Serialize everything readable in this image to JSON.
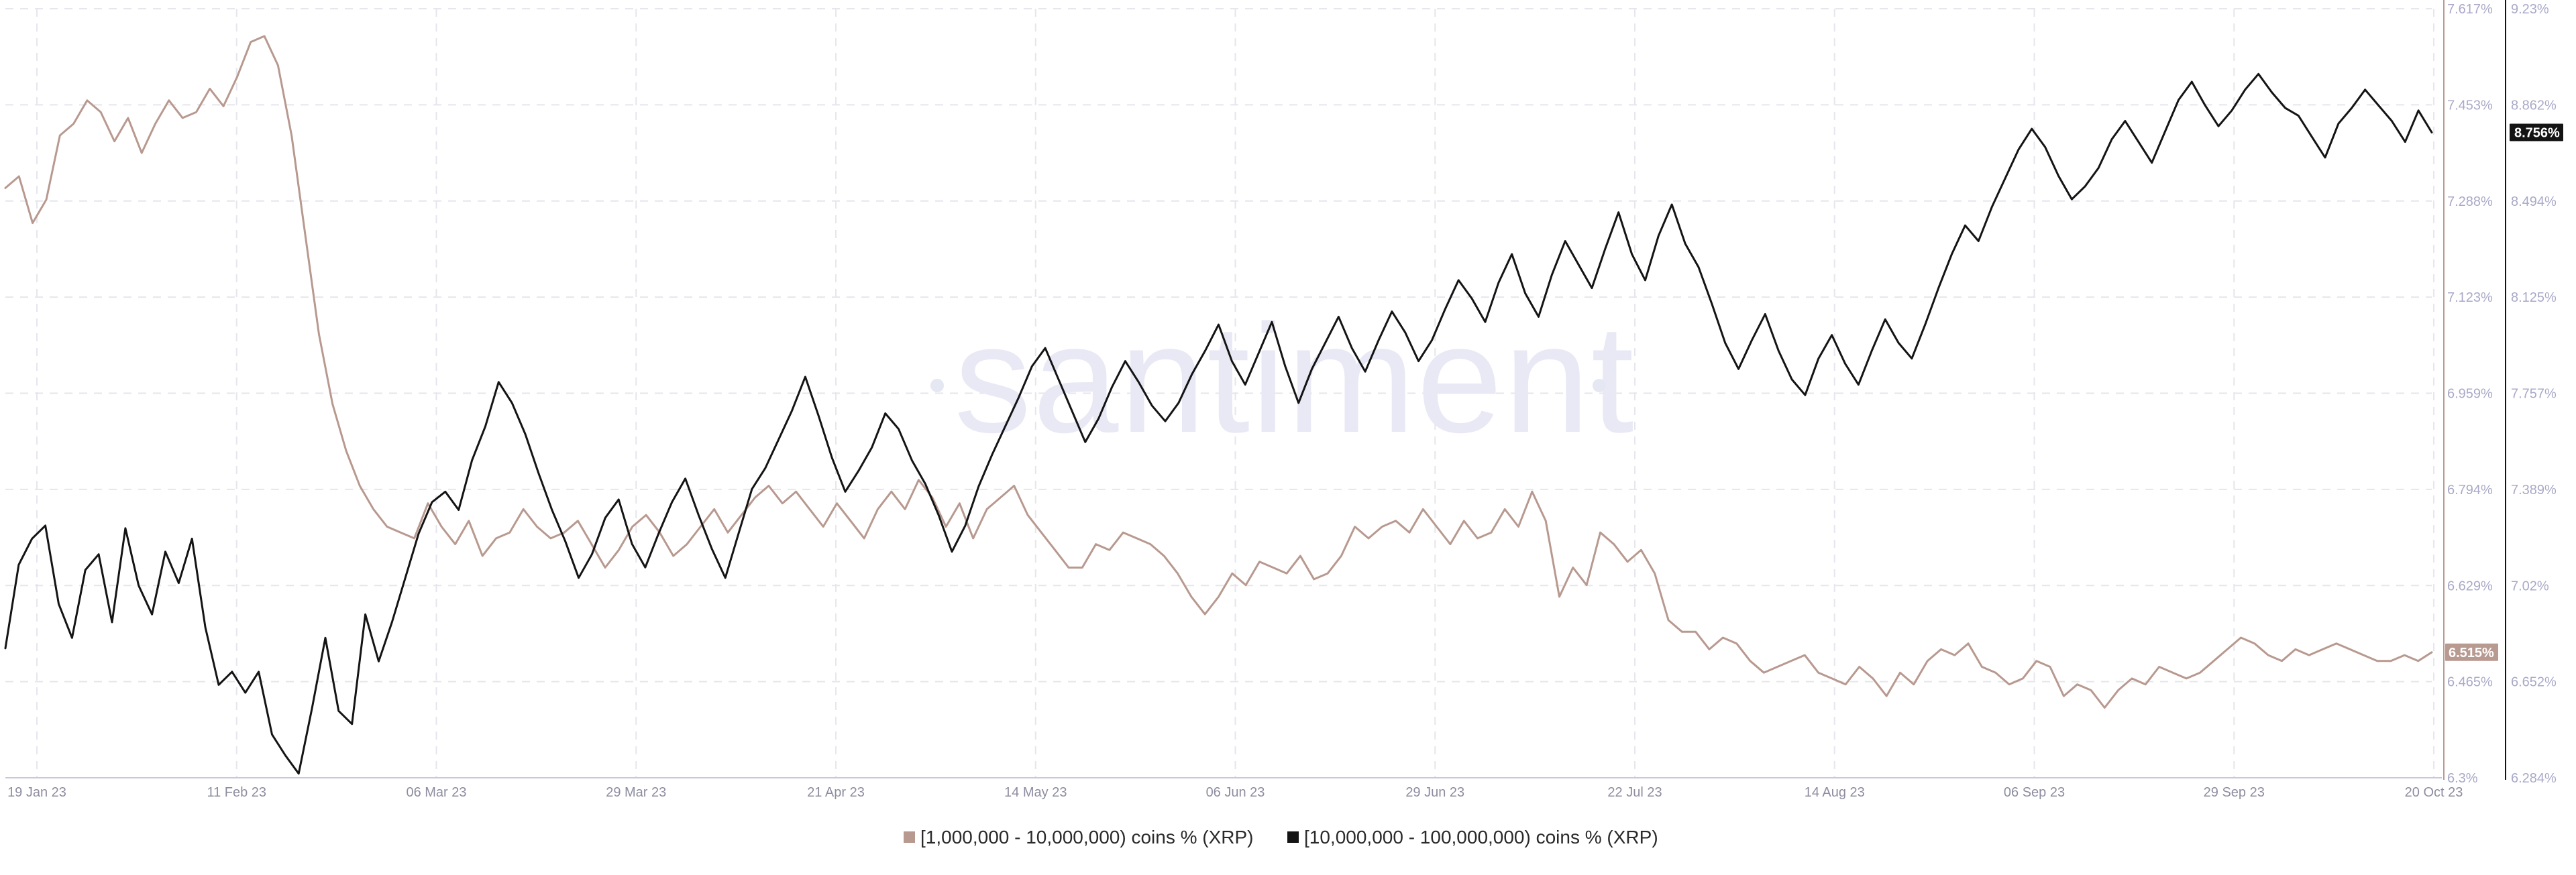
{
  "watermark": "santiment",
  "colors": {
    "series_small": "#b8998f",
    "series_large": "#141414",
    "grid": "#e5e6ee",
    "axis": "#c7c9d9",
    "tick_text": "#a9a9c8",
    "badge_small_bg": "#b89a91",
    "badge_large_bg": "#141414",
    "badge_text": "#ffffff"
  },
  "chart_data": {
    "type": "line",
    "title": "",
    "x_labels": [
      "19 Jan 23",
      "11 Feb 23",
      "06 Mar 23",
      "29 Mar 23",
      "21 Apr 23",
      "14 May 23",
      "06 Jun 23",
      "29 Jun 23",
      "22 Jul 23",
      "14 Aug 23",
      "06 Sep 23",
      "29 Sep 23",
      "20 Oct 23"
    ],
    "left_axis": {
      "series": "[1,000,000 - 10,000,000) coins % (XRP)",
      "ylim": [
        6.3,
        7.617
      ],
      "ticks": [
        "7.617%",
        "7.453%",
        "7.288%",
        "7.123%",
        "6.959%",
        "6.794%",
        "6.629%",
        "6.465%",
        "6.3%"
      ],
      "latest_label": "6.515%"
    },
    "right_axis": {
      "series": "[10,000,000 - 100,000,000) coins % (XRP)",
      "ylim": [
        6.284,
        9.23
      ],
      "ticks": [
        "9.23%",
        "8.862%",
        "8.494%",
        "8.125%",
        "7.757%",
        "7.389%",
        "7.02%",
        "6.652%",
        "6.284%"
      ],
      "latest_label": "8.756%"
    },
    "series": [
      {
        "name": "[1,000,000 - 10,000,000) coins % (XRP)",
        "axis": "left",
        "values": [
          7.31,
          7.33,
          7.25,
          7.29,
          7.4,
          7.42,
          7.46,
          7.44,
          7.39,
          7.43,
          7.37,
          7.42,
          7.46,
          7.43,
          7.44,
          7.48,
          7.45,
          7.5,
          7.56,
          7.57,
          7.52,
          7.4,
          7.23,
          7.06,
          6.94,
          6.86,
          6.8,
          6.76,
          6.73,
          6.72,
          6.71,
          6.77,
          6.73,
          6.7,
          6.74,
          6.68,
          6.71,
          6.72,
          6.76,
          6.73,
          6.71,
          6.72,
          6.74,
          6.7,
          6.66,
          6.69,
          6.73,
          6.75,
          6.72,
          6.68,
          6.7,
          6.73,
          6.76,
          6.72,
          6.75,
          6.78,
          6.8,
          6.77,
          6.79,
          6.76,
          6.73,
          6.77,
          6.74,
          6.71,
          6.76,
          6.79,
          6.76,
          6.81,
          6.78,
          6.73,
          6.77,
          6.71,
          6.76,
          6.78,
          6.8,
          6.75,
          6.72,
          6.69,
          6.66,
          6.66,
          6.7,
          6.69,
          6.72,
          6.71,
          6.7,
          6.68,
          6.65,
          6.61,
          6.58,
          6.61,
          6.65,
          6.63,
          6.67,
          6.66,
          6.65,
          6.68,
          6.64,
          6.65,
          6.68,
          6.73,
          6.71,
          6.73,
          6.74,
          6.72,
          6.76,
          6.73,
          6.7,
          6.74,
          6.71,
          6.72,
          6.76,
          6.73,
          6.79,
          6.74,
          6.61,
          6.66,
          6.63,
          6.72,
          6.7,
          6.67,
          6.69,
          6.65,
          6.57,
          6.55,
          6.55,
          6.52,
          6.54,
          6.53,
          6.5,
          6.48,
          6.49,
          6.5,
          6.51,
          6.48,
          6.47,
          6.46,
          6.49,
          6.47,
          6.44,
          6.48,
          6.46,
          6.5,
          6.52,
          6.51,
          6.53,
          6.49,
          6.48,
          6.46,
          6.47,
          6.5,
          6.49,
          6.44,
          6.46,
          6.45,
          6.42,
          6.45,
          6.47,
          6.46,
          6.49,
          6.48,
          6.47,
          6.48,
          6.5,
          6.52,
          6.54,
          6.53,
          6.51,
          6.5,
          6.52,
          6.51,
          6.52,
          6.53,
          6.52,
          6.51,
          6.5,
          6.5,
          6.51,
          6.5,
          6.515
        ]
      },
      {
        "name": "[10,000,000 - 100,000,000) coins % (XRP)",
        "axis": "right",
        "values": [
          6.78,
          7.1,
          7.2,
          7.25,
          6.95,
          6.82,
          7.08,
          7.14,
          6.88,
          7.24,
          7.02,
          6.91,
          7.15,
          7.03,
          7.2,
          6.86,
          6.64,
          6.69,
          6.61,
          6.69,
          6.45,
          6.37,
          6.3,
          6.55,
          6.82,
          6.54,
          6.49,
          6.91,
          6.73,
          6.88,
          7.05,
          7.22,
          7.34,
          7.38,
          7.31,
          7.5,
          7.63,
          7.8,
          7.72,
          7.6,
          7.45,
          7.31,
          7.19,
          7.05,
          7.14,
          7.28,
          7.35,
          7.18,
          7.09,
          7.22,
          7.34,
          7.43,
          7.29,
          7.16,
          7.05,
          7.22,
          7.39,
          7.47,
          7.58,
          7.69,
          7.82,
          7.67,
          7.51,
          7.38,
          7.46,
          7.55,
          7.68,
          7.62,
          7.5,
          7.41,
          7.29,
          7.15,
          7.25,
          7.4,
          7.52,
          7.63,
          7.74,
          7.86,
          7.93,
          7.81,
          7.69,
          7.57,
          7.66,
          7.78,
          7.88,
          7.8,
          7.71,
          7.65,
          7.72,
          7.83,
          7.92,
          8.02,
          7.88,
          7.79,
          7.91,
          8.03,
          7.86,
          7.72,
          7.85,
          7.95,
          8.05,
          7.93,
          7.84,
          7.96,
          8.07,
          7.99,
          7.88,
          7.96,
          8.08,
          8.19,
          8.12,
          8.03,
          8.18,
          8.29,
          8.14,
          8.05,
          8.21,
          8.34,
          8.25,
          8.16,
          8.31,
          8.45,
          8.29,
          8.19,
          8.36,
          8.48,
          8.33,
          8.24,
          8.1,
          7.95,
          7.85,
          7.96,
          8.06,
          7.92,
          7.81,
          7.75,
          7.89,
          7.98,
          7.87,
          7.79,
          7.92,
          8.04,
          7.95,
          7.89,
          8.02,
          8.16,
          8.29,
          8.4,
          8.34,
          8.47,
          8.58,
          8.69,
          8.77,
          8.7,
          8.59,
          8.5,
          8.55,
          8.62,
          8.73,
          8.8,
          8.72,
          8.64,
          8.76,
          8.88,
          8.95,
          8.86,
          8.78,
          8.84,
          8.92,
          8.98,
          8.91,
          8.85,
          8.82,
          8.74,
          8.66,
          8.79,
          8.85,
          8.92,
          8.86,
          8.8,
          8.72,
          8.84,
          8.756
        ]
      }
    ]
  },
  "legend": {
    "items": [
      {
        "label": "[1,000,000 - 10,000,000) coins % (XRP)",
        "color": "#b8998f"
      },
      {
        "label": "[10,000,000 - 100,000,000) coins % (XRP)",
        "color": "#141414"
      }
    ]
  }
}
